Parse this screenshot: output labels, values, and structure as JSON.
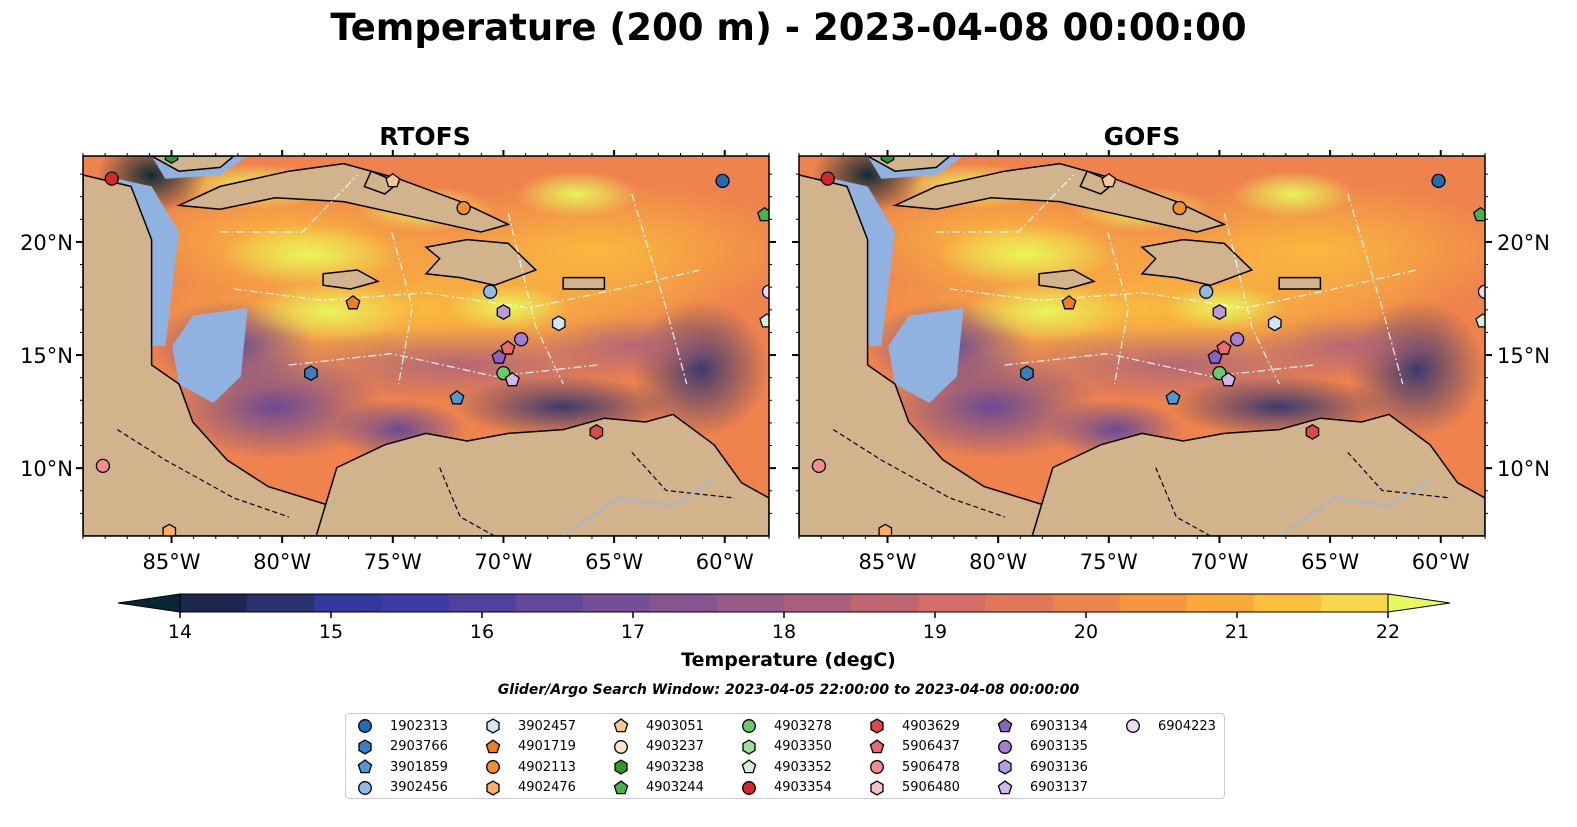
{
  "title": "Temperature (200 m) - 2023-04-08 00:00:00",
  "panels": [
    {
      "title": "RTOFS"
    },
    {
      "title": "GOFS"
    }
  ],
  "axes": {
    "lon_ticks": [
      "85°W",
      "80°W",
      "75°W",
      "70°W",
      "65°W",
      "60°W"
    ],
    "lat_ticks": [
      "20°N",
      "15°N",
      "10°N"
    ]
  },
  "colorbar": {
    "label": "Temperature (degC)",
    "ticks": [
      "14",
      "15",
      "16",
      "17",
      "18",
      "19",
      "20",
      "21",
      "22"
    ],
    "colors": [
      "#1c2750",
      "#2a3272",
      "#33399b",
      "#3f3aa5",
      "#52409f",
      "#63489b",
      "#744f97",
      "#865490",
      "#985a87",
      "#aa5f7e",
      "#c06673",
      "#d66c68",
      "#e3775b",
      "#ef834d",
      "#f89540",
      "#fba93b",
      "#fbbf3c",
      "#f6d64a"
    ],
    "under_color": "#082633",
    "over_color": "#e8fa5b"
  },
  "search_window": "Glider/Argo Search Window: 2023-04-05 22:00:00 to 2023-04-08 00:00:00",
  "legend": [
    {
      "id": "1902313",
      "marker": "circle",
      "color": "#1f6db8"
    },
    {
      "id": "2903766",
      "marker": "hexagon",
      "color": "#3a7fc0"
    },
    {
      "id": "3901859",
      "marker": "pentagon",
      "color": "#4a9ad6"
    },
    {
      "id": "3902456",
      "marker": "circle",
      "color": "#8cbde8"
    },
    {
      "id": "3902457",
      "marker": "hexagon",
      "color": "#cfe6f7"
    },
    {
      "id": "4901719",
      "marker": "pentagon",
      "color": "#f07d1a"
    },
    {
      "id": "4902113",
      "marker": "circle",
      "color": "#f3902e"
    },
    {
      "id": "4902476",
      "marker": "hexagon",
      "color": "#fbb064"
    },
    {
      "id": "4903051",
      "marker": "pentagon",
      "color": "#fcc891"
    },
    {
      "id": "4903237",
      "marker": "circle",
      "color": "#fde2c4"
    },
    {
      "id": "4903238",
      "marker": "hexagon",
      "color": "#2a9b2a"
    },
    {
      "id": "4903244",
      "marker": "pentagon",
      "color": "#46b346"
    },
    {
      "id": "4903278",
      "marker": "circle",
      "color": "#6cc86c"
    },
    {
      "id": "4903350",
      "marker": "hexagon",
      "color": "#9ddf9d"
    },
    {
      "id": "4903352",
      "marker": "pentagon",
      "color": "#d2f2d2"
    },
    {
      "id": "4903354",
      "marker": "circle",
      "color": "#d62728"
    },
    {
      "id": "4903629",
      "marker": "hexagon",
      "color": "#de4848"
    },
    {
      "id": "5906437",
      "marker": "pentagon",
      "color": "#ec6a6a"
    },
    {
      "id": "5906478",
      "marker": "circle",
      "color": "#f48e8e"
    },
    {
      "id": "5906480",
      "marker": "hexagon",
      "color": "#fac3c3"
    },
    {
      "id": "6903134",
      "marker": "pentagon",
      "color": "#8a62c4"
    },
    {
      "id": "6903135",
      "marker": "circle",
      "color": "#a27fd2"
    },
    {
      "id": "6903136",
      "marker": "hexagon",
      "color": "#b999e0"
    },
    {
      "id": "6903137",
      "marker": "pentagon",
      "color": "#d0b7ec"
    },
    {
      "id": "6904223",
      "marker": "circle",
      "color": "#ead9f7"
    }
  ],
  "extent": {
    "lon_min": -89,
    "lon_max": -58,
    "lat_min": 7,
    "lat_max": 23.8
  },
  "observations": [
    {
      "id": "4903354",
      "lon": -87.7,
      "lat": 22.8
    },
    {
      "id": "1902313",
      "lon": -60.1,
      "lat": 22.7
    },
    {
      "id": "4903244",
      "lon": -58.2,
      "lat": 21.2
    },
    {
      "id": "4903051",
      "lon": -75.0,
      "lat": 22.7
    },
    {
      "id": "4902113",
      "lon": -71.8,
      "lat": 21.5
    },
    {
      "id": "3902456",
      "lon": -70.6,
      "lat": 17.8
    },
    {
      "id": "4901719",
      "lon": -76.8,
      "lat": 17.3
    },
    {
      "id": "6903136",
      "lon": -70.0,
      "lat": 16.9
    },
    {
      "id": "3902457",
      "lon": -67.5,
      "lat": 16.4
    },
    {
      "id": "6903135",
      "lon": -69.2,
      "lat": 15.7
    },
    {
      "id": "5906437",
      "lon": -69.8,
      "lat": 15.3
    },
    {
      "id": "6903134",
      "lon": -70.2,
      "lat": 14.9
    },
    {
      "id": "4903278",
      "lon": -70.0,
      "lat": 14.2
    },
    {
      "id": "6903137",
      "lon": -69.6,
      "lat": 13.9
    },
    {
      "id": "2903766",
      "lon": -78.7,
      "lat": 14.2
    },
    {
      "id": "3901859",
      "lon": -72.1,
      "lat": 13.1
    },
    {
      "id": "4903629",
      "lon": -65.8,
      "lat": 11.6
    },
    {
      "id": "5906478",
      "lon": -88.1,
      "lat": 10.1
    },
    {
      "id": "4902476",
      "lon": -85.1,
      "lat": 7.2
    },
    {
      "id": "4903238",
      "lon": -85.0,
      "lat": 23.8
    },
    {
      "id": "6904223",
      "lon": -58.0,
      "lat": 17.8
    },
    {
      "id": "4903352",
      "lon": -58.1,
      "lat": 16.5
    }
  ]
}
